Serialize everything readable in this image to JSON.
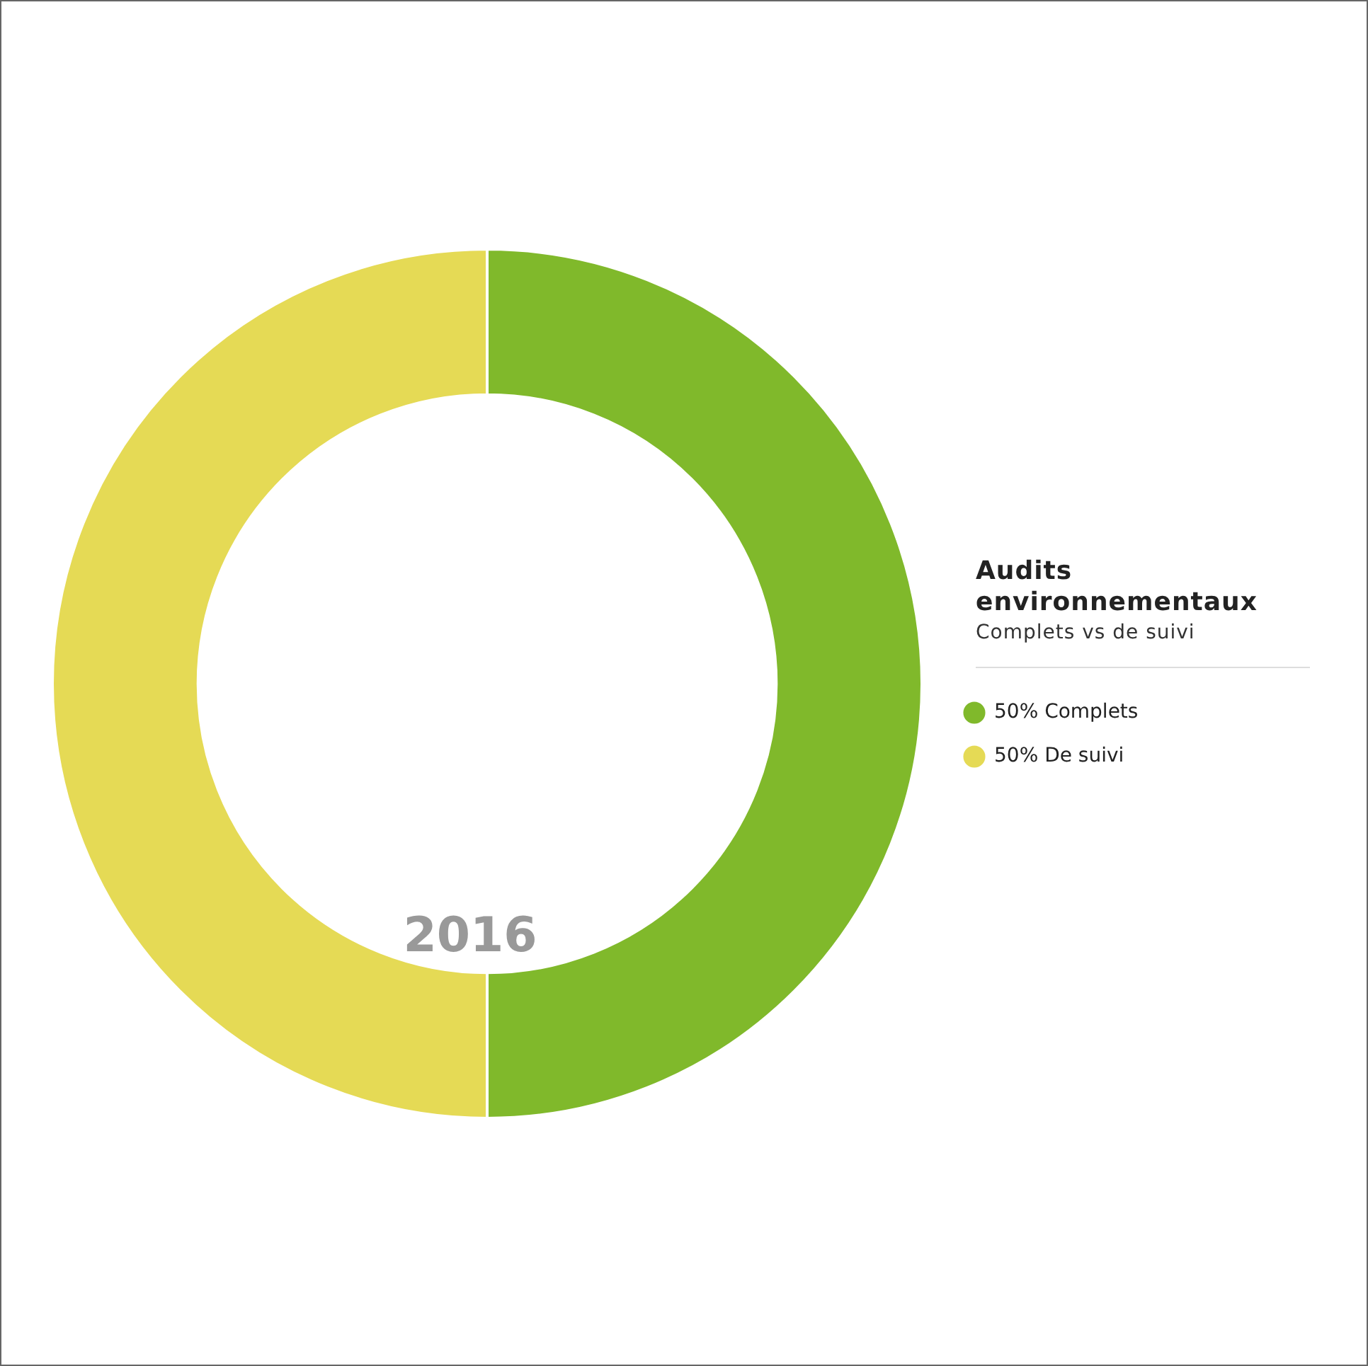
{
  "chart_data": {
    "type": "donut",
    "title": "Audits environnementaux",
    "subtitle": "Complets vs de suivi",
    "categories": [
      "Complets",
      "De suivi"
    ],
    "values": [
      50,
      50
    ],
    "colors": [
      "#80b92b",
      "#e5da55"
    ],
    "value_labels": [
      "50%",
      "50%"
    ],
    "annotations": [
      "2016"
    ],
    "legend": "right"
  }
}
